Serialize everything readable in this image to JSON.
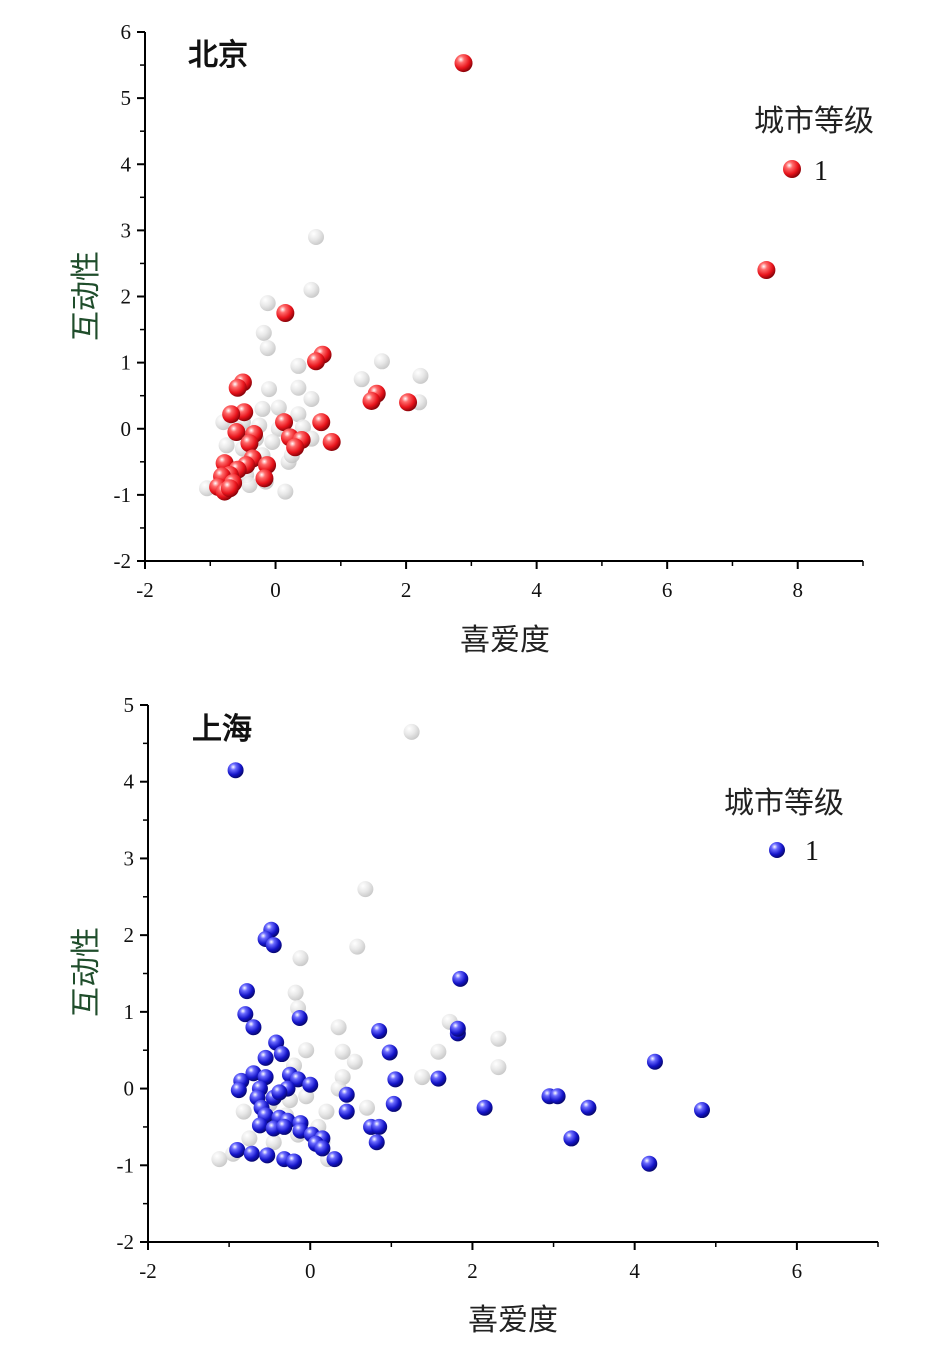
{
  "chart_data": [
    {
      "type": "scatter",
      "title": "北京",
      "xlabel": "喜爱度",
      "ylabel": "互动性",
      "xlim": [
        -2,
        9
      ],
      "ylim": [
        -2,
        6
      ],
      "xticks": [
        -2,
        0,
        2,
        4,
        6,
        8
      ],
      "yticks": [
        -2,
        -1,
        0,
        1,
        2,
        3,
        4,
        5,
        6
      ],
      "legend": {
        "title": "城市等级",
        "position": "top-right"
      },
      "grid": false,
      "series": [
        {
          "name": "1",
          "color": "#e8131b",
          "points": [
            [
              2.88,
              5.53
            ],
            [
              7.52,
              2.4
            ],
            [
              0.15,
              1.75
            ],
            [
              0.72,
              1.12
            ],
            [
              0.62,
              1.02
            ],
            [
              -0.5,
              0.7
            ],
            [
              -0.58,
              0.62
            ],
            [
              1.55,
              0.53
            ],
            [
              1.47,
              0.42
            ],
            [
              2.03,
              0.4
            ],
            [
              -0.48,
              0.25
            ],
            [
              -0.68,
              0.22
            ],
            [
              0.13,
              0.1
            ],
            [
              0.7,
              0.1
            ],
            [
              -0.6,
              -0.05
            ],
            [
              -0.33,
              -0.08
            ],
            [
              0.22,
              -0.13
            ],
            [
              0.4,
              -0.17
            ],
            [
              0.86,
              -0.2
            ],
            [
              0.3,
              -0.28
            ],
            [
              -0.4,
              -0.22
            ],
            [
              -0.35,
              -0.45
            ],
            [
              -0.45,
              -0.55
            ],
            [
              -0.13,
              -0.55
            ],
            [
              -0.78,
              -0.52
            ],
            [
              -0.58,
              -0.62
            ],
            [
              -0.7,
              -0.7
            ],
            [
              -0.82,
              -0.72
            ],
            [
              -0.17,
              -0.75
            ],
            [
              -0.65,
              -0.82
            ],
            [
              -0.88,
              -0.88
            ],
            [
              -0.78,
              -0.95
            ],
            [
              -0.7,
              -0.9
            ]
          ]
        },
        {
          "name": "",
          "color": "#c8c8c8",
          "points": [
            [
              0.62,
              2.9
            ],
            [
              0.55,
              2.1
            ],
            [
              -0.12,
              1.9
            ],
            [
              -0.18,
              1.45
            ],
            [
              -0.12,
              1.22
            ],
            [
              1.63,
              1.02
            ],
            [
              0.35,
              0.95
            ],
            [
              2.22,
              0.8
            ],
            [
              1.32,
              0.75
            ],
            [
              -0.1,
              0.6
            ],
            [
              0.35,
              0.62
            ],
            [
              0.55,
              0.45
            ],
            [
              2.2,
              0.4
            ],
            [
              -0.2,
              0.3
            ],
            [
              0.05,
              0.32
            ],
            [
              0.35,
              0.22
            ],
            [
              -0.5,
              0.1
            ],
            [
              -0.25,
              0.05
            ],
            [
              0.05,
              0.0
            ],
            [
              0.42,
              0.02
            ],
            [
              -0.8,
              0.1
            ],
            [
              -0.6,
              0.0
            ],
            [
              -0.3,
              -0.15
            ],
            [
              -0.05,
              -0.2
            ],
            [
              0.55,
              -0.15
            ],
            [
              -0.75,
              -0.25
            ],
            [
              -0.5,
              -0.3
            ],
            [
              -0.2,
              -0.4
            ],
            [
              0.2,
              -0.5
            ],
            [
              -0.45,
              -0.7
            ],
            [
              -0.15,
              -0.8
            ],
            [
              0.15,
              -0.95
            ],
            [
              -1.05,
              -0.9
            ],
            [
              -0.4,
              -0.85
            ],
            [
              0.25,
              -0.4
            ]
          ]
        }
      ]
    },
    {
      "type": "scatter",
      "title": "上海",
      "xlabel": "喜爱度",
      "ylabel": "互动性",
      "xlim": [
        -2,
        7
      ],
      "ylim": [
        -2,
        5
      ],
      "xticks": [
        -2,
        0,
        2,
        4,
        6
      ],
      "yticks": [
        -2,
        -1,
        0,
        1,
        2,
        3,
        4,
        5
      ],
      "legend": {
        "title": "城市等级",
        "position": "top-right"
      },
      "grid": false,
      "series": [
        {
          "name": "1",
          "color": "#1414c8",
          "points": [
            [
              -0.92,
              4.15
            ],
            [
              -0.48,
              2.07
            ],
            [
              -0.55,
              1.95
            ],
            [
              -0.45,
              1.87
            ],
            [
              -0.78,
              1.27
            ],
            [
              -0.8,
              0.97
            ],
            [
              -0.7,
              0.8
            ],
            [
              -0.13,
              0.92
            ],
            [
              -0.42,
              0.6
            ],
            [
              -0.55,
              0.4
            ],
            [
              -0.35,
              0.45
            ],
            [
              -0.85,
              0.1
            ],
            [
              -0.88,
              -0.02
            ],
            [
              -0.7,
              0.2
            ],
            [
              -0.55,
              0.15
            ],
            [
              -0.25,
              0.18
            ],
            [
              -0.15,
              0.12
            ],
            [
              0.0,
              0.05
            ],
            [
              -0.28,
              0.0
            ],
            [
              -0.62,
              0.0
            ],
            [
              -0.65,
              -0.12
            ],
            [
              -0.45,
              -0.12
            ],
            [
              -0.38,
              -0.05
            ],
            [
              -0.6,
              -0.25
            ],
            [
              -0.55,
              -0.35
            ],
            [
              -0.38,
              -0.38
            ],
            [
              -0.28,
              -0.42
            ],
            [
              -0.12,
              -0.45
            ],
            [
              -0.62,
              -0.48
            ],
            [
              -0.45,
              -0.52
            ],
            [
              -0.32,
              -0.5
            ],
            [
              -0.12,
              -0.55
            ],
            [
              0.02,
              -0.6
            ],
            [
              0.15,
              -0.65
            ],
            [
              0.07,
              -0.72
            ],
            [
              0.15,
              -0.78
            ],
            [
              -0.9,
              -0.8
            ],
            [
              -0.72,
              -0.85
            ],
            [
              -0.53,
              -0.87
            ],
            [
              -0.32,
              -0.92
            ],
            [
              -0.2,
              -0.95
            ],
            [
              0.3,
              -0.92
            ],
            [
              0.45,
              -0.08
            ],
            [
              0.45,
              -0.3
            ],
            [
              0.85,
              0.75
            ],
            [
              0.98,
              0.47
            ],
            [
              1.05,
              0.12
            ],
            [
              1.03,
              -0.2
            ],
            [
              0.75,
              -0.5
            ],
            [
              0.85,
              -0.5
            ],
            [
              0.82,
              -0.7
            ],
            [
              1.58,
              0.13
            ],
            [
              1.82,
              0.72
            ],
            [
              1.82,
              0.78
            ],
            [
              1.85,
              1.43
            ],
            [
              2.15,
              -0.25
            ],
            [
              2.95,
              -0.1
            ],
            [
              3.05,
              -0.1
            ],
            [
              3.22,
              -0.65
            ],
            [
              3.43,
              -0.25
            ],
            [
              4.18,
              -0.98
            ],
            [
              4.25,
              0.35
            ],
            [
              4.83,
              -0.28
            ]
          ]
        },
        {
          "name": "",
          "color": "#c8c8c8",
          "points": [
            [
              1.25,
              4.65
            ],
            [
              0.68,
              2.6
            ],
            [
              0.58,
              1.85
            ],
            [
              -0.12,
              1.7
            ],
            [
              -0.18,
              1.25
            ],
            [
              -0.15,
              1.05
            ],
            [
              1.72,
              0.87
            ],
            [
              0.35,
              0.8
            ],
            [
              2.32,
              0.65
            ],
            [
              1.58,
              0.48
            ],
            [
              -0.05,
              0.5
            ],
            [
              0.4,
              0.48
            ],
            [
              0.55,
              0.35
            ],
            [
              2.32,
              0.28
            ],
            [
              1.38,
              0.15
            ],
            [
              -0.2,
              0.3
            ],
            [
              0.4,
              0.15
            ],
            [
              0.7,
              -0.25
            ],
            [
              -0.05,
              -0.1
            ],
            [
              0.35,
              0.0
            ],
            [
              -0.82,
              -0.3
            ],
            [
              -0.5,
              -0.2
            ],
            [
              -0.25,
              -0.15
            ],
            [
              0.2,
              -0.3
            ],
            [
              -0.75,
              -0.65
            ],
            [
              -0.45,
              -0.7
            ],
            [
              -0.15,
              -0.6
            ],
            [
              0.1,
              -0.5
            ],
            [
              0.22,
              -0.92
            ],
            [
              -1.12,
              -0.92
            ],
            [
              -0.95,
              -0.85
            ],
            [
              0.15,
              -0.7
            ],
            [
              -0.3,
              -0.35
            ]
          ]
        }
      ]
    }
  ]
}
